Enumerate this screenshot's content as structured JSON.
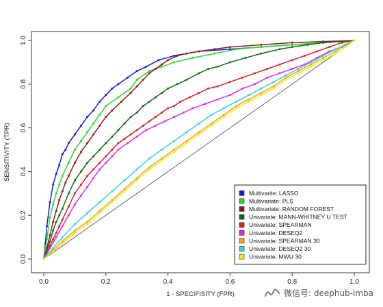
{
  "chart_data": {
    "type": "line",
    "title": "",
    "xlabel": "1 - SPECIFISITY (FPR)",
    "ylabel": "SENSITIVITY (TPR)",
    "xlim": [
      0,
      1
    ],
    "ylim": [
      0,
      1
    ],
    "xticks": [
      "0.0",
      "0.2",
      "0.4",
      "0.6",
      "0.8",
      "1.0"
    ],
    "yticks": [
      "0.0",
      "0.2",
      "0.4",
      "0.6",
      "0.8",
      "1.0"
    ],
    "grid": false,
    "legend_position": "bottom-right",
    "diagonal": {
      "color": "#555555",
      "x": [
        0,
        1
      ],
      "y": [
        0,
        1
      ]
    },
    "series": [
      {
        "name": "Multivarite: LASSO",
        "color": "#1515ee",
        "x": [
          0,
          0.005,
          0.01,
          0.02,
          0.03,
          0.04,
          0.05,
          0.06,
          0.07,
          0.08,
          0.1,
          0.12,
          0.14,
          0.16,
          0.18,
          0.2,
          0.22,
          0.24,
          0.27,
          0.3,
          0.33,
          0.37,
          0.42,
          0.5,
          0.6,
          0.7,
          0.8,
          0.9,
          1.0
        ],
        "y": [
          0,
          0.07,
          0.15,
          0.26,
          0.34,
          0.39,
          0.43,
          0.48,
          0.5,
          0.53,
          0.57,
          0.61,
          0.65,
          0.68,
          0.72,
          0.75,
          0.78,
          0.8,
          0.83,
          0.86,
          0.88,
          0.91,
          0.93,
          0.95,
          0.96,
          0.97,
          0.98,
          0.99,
          1.0
        ]
      },
      {
        "name": "Multivariate: PLS",
        "color": "#22dd22",
        "x": [
          0,
          0.01,
          0.02,
          0.03,
          0.04,
          0.05,
          0.06,
          0.08,
          0.1,
          0.12,
          0.14,
          0.16,
          0.18,
          0.2,
          0.24,
          0.28,
          0.3,
          0.34,
          0.38,
          0.42,
          0.48,
          0.55,
          0.62,
          0.7,
          0.8,
          0.9,
          1.0
        ],
        "y": [
          0,
          0.09,
          0.19,
          0.25,
          0.3,
          0.34,
          0.38,
          0.44,
          0.5,
          0.54,
          0.58,
          0.62,
          0.66,
          0.7,
          0.74,
          0.78,
          0.82,
          0.86,
          0.88,
          0.9,
          0.92,
          0.94,
          0.96,
          0.97,
          0.98,
          0.99,
          1.0
        ]
      },
      {
        "name": "Multivariate: RANDOM FOREST",
        "color": "#8b1a1a",
        "x": [
          0,
          0.01,
          0.02,
          0.03,
          0.04,
          0.05,
          0.06,
          0.07,
          0.08,
          0.1,
          0.12,
          0.14,
          0.16,
          0.18,
          0.2,
          0.22,
          0.25,
          0.28,
          0.3,
          0.32,
          0.34,
          0.36,
          0.38,
          0.4,
          0.43,
          0.46,
          0.5,
          0.55,
          0.6,
          0.7,
          0.8,
          0.9,
          1.0
        ],
        "y": [
          0,
          0.05,
          0.11,
          0.17,
          0.22,
          0.27,
          0.31,
          0.35,
          0.38,
          0.44,
          0.49,
          0.53,
          0.57,
          0.61,
          0.65,
          0.68,
          0.72,
          0.76,
          0.79,
          0.82,
          0.85,
          0.87,
          0.89,
          0.91,
          0.93,
          0.94,
          0.95,
          0.96,
          0.97,
          0.98,
          0.99,
          0.995,
          1.0
        ]
      },
      {
        "name": "Univariate: MANN-WHITNEY U TEST",
        "color": "#0b6e0b",
        "x": [
          0,
          0.01,
          0.02,
          0.03,
          0.04,
          0.05,
          0.06,
          0.08,
          0.1,
          0.12,
          0.14,
          0.16,
          0.18,
          0.2,
          0.22,
          0.24,
          0.26,
          0.28,
          0.3,
          0.32,
          0.34,
          0.36,
          0.38,
          0.4,
          0.43,
          0.46,
          0.5,
          0.53,
          0.56,
          0.6,
          0.65,
          0.7,
          0.76,
          0.8,
          0.85,
          0.9,
          0.95,
          1.0
        ],
        "y": [
          0,
          0.04,
          0.08,
          0.13,
          0.17,
          0.2,
          0.23,
          0.3,
          0.36,
          0.4,
          0.44,
          0.47,
          0.5,
          0.53,
          0.56,
          0.59,
          0.62,
          0.65,
          0.67,
          0.7,
          0.72,
          0.74,
          0.76,
          0.78,
          0.8,
          0.82,
          0.85,
          0.87,
          0.88,
          0.9,
          0.92,
          0.94,
          0.96,
          0.97,
          0.98,
          0.99,
          0.995,
          1.0
        ]
      },
      {
        "name": "Univariate: SPEARMAN",
        "color": "#e81919",
        "x": [
          0,
          0.01,
          0.02,
          0.03,
          0.04,
          0.05,
          0.06,
          0.08,
          0.1,
          0.12,
          0.14,
          0.16,
          0.18,
          0.2,
          0.22,
          0.24,
          0.26,
          0.28,
          0.3,
          0.32,
          0.34,
          0.36,
          0.38,
          0.4,
          0.42,
          0.44,
          0.47,
          0.5,
          0.53,
          0.56,
          0.6,
          0.64,
          0.68,
          0.72,
          0.76,
          0.8,
          0.84,
          0.88,
          0.92,
          0.96,
          1.0
        ],
        "y": [
          0,
          0.03,
          0.06,
          0.09,
          0.12,
          0.15,
          0.18,
          0.24,
          0.3,
          0.34,
          0.38,
          0.41,
          0.44,
          0.47,
          0.5,
          0.53,
          0.55,
          0.57,
          0.59,
          0.61,
          0.63,
          0.65,
          0.67,
          0.69,
          0.7,
          0.72,
          0.74,
          0.76,
          0.78,
          0.79,
          0.81,
          0.83,
          0.85,
          0.87,
          0.89,
          0.91,
          0.93,
          0.95,
          0.97,
          0.99,
          1.0
        ]
      },
      {
        "name": "Univariate: DESEQ2",
        "color": "#ee22ee",
        "x": [
          0,
          0.02,
          0.04,
          0.06,
          0.08,
          0.1,
          0.12,
          0.14,
          0.16,
          0.18,
          0.2,
          0.22,
          0.24,
          0.27,
          0.3,
          0.33,
          0.36,
          0.39,
          0.42,
          0.45,
          0.48,
          0.52,
          0.56,
          0.6,
          0.64,
          0.68,
          0.72,
          0.76,
          0.8,
          0.84,
          0.88,
          0.92,
          0.96,
          1.0
        ],
        "y": [
          0,
          0.05,
          0.1,
          0.15,
          0.2,
          0.25,
          0.29,
          0.33,
          0.37,
          0.41,
          0.44,
          0.47,
          0.5,
          0.53,
          0.56,
          0.59,
          0.61,
          0.63,
          0.65,
          0.67,
          0.69,
          0.71,
          0.73,
          0.75,
          0.78,
          0.8,
          0.83,
          0.85,
          0.87,
          0.89,
          0.92,
          0.95,
          0.97,
          1.0
        ]
      },
      {
        "name": "Univariate: SPEARMAN 30",
        "color": "#f5a020",
        "x": [
          0,
          0.03,
          0.06,
          0.1,
          0.14,
          0.18,
          0.22,
          0.26,
          0.3,
          0.34,
          0.38,
          0.42,
          0.46,
          0.5,
          0.54,
          0.58,
          0.62,
          0.66,
          0.7,
          0.74,
          0.78,
          0.82,
          0.86,
          0.9,
          0.94,
          0.97,
          1.0
        ],
        "y": [
          0,
          0.04,
          0.08,
          0.13,
          0.17,
          0.22,
          0.27,
          0.32,
          0.37,
          0.42,
          0.46,
          0.5,
          0.54,
          0.58,
          0.62,
          0.66,
          0.7,
          0.73,
          0.76,
          0.79,
          0.83,
          0.86,
          0.89,
          0.92,
          0.95,
          0.98,
          1.0
        ]
      },
      {
        "name": "Univariate: DESEQ2 30",
        "color": "#2ed8d8",
        "x": [
          0,
          0.03,
          0.06,
          0.1,
          0.14,
          0.18,
          0.22,
          0.26,
          0.3,
          0.34,
          0.38,
          0.42,
          0.46,
          0.5,
          0.54,
          0.58,
          0.62,
          0.66,
          0.7,
          0.74,
          0.78,
          0.82,
          0.86,
          0.9,
          0.94,
          0.97,
          1.0
        ],
        "y": [
          0,
          0.05,
          0.1,
          0.16,
          0.21,
          0.26,
          0.31,
          0.36,
          0.41,
          0.46,
          0.5,
          0.54,
          0.58,
          0.62,
          0.66,
          0.69,
          0.72,
          0.75,
          0.78,
          0.81,
          0.84,
          0.87,
          0.9,
          0.93,
          0.96,
          0.98,
          1.0
        ]
      },
      {
        "name": "Univariate: MWU 30",
        "color": "#f0f000",
        "x": [
          0,
          0.03,
          0.06,
          0.1,
          0.14,
          0.18,
          0.22,
          0.26,
          0.3,
          0.34,
          0.38,
          0.42,
          0.46,
          0.5,
          0.54,
          0.58,
          0.62,
          0.66,
          0.7,
          0.74,
          0.78,
          0.82,
          0.86,
          0.9,
          0.94,
          0.97,
          1.0
        ],
        "y": [
          0,
          0.035,
          0.07,
          0.12,
          0.16,
          0.21,
          0.26,
          0.31,
          0.36,
          0.41,
          0.45,
          0.49,
          0.53,
          0.57,
          0.61,
          0.65,
          0.69,
          0.72,
          0.75,
          0.78,
          0.82,
          0.85,
          0.88,
          0.91,
          0.94,
          0.97,
          1.0
        ]
      }
    ]
  },
  "watermark": {
    "text": "微信号: deephub-imba",
    "icon": "wechat-channel-icon"
  }
}
